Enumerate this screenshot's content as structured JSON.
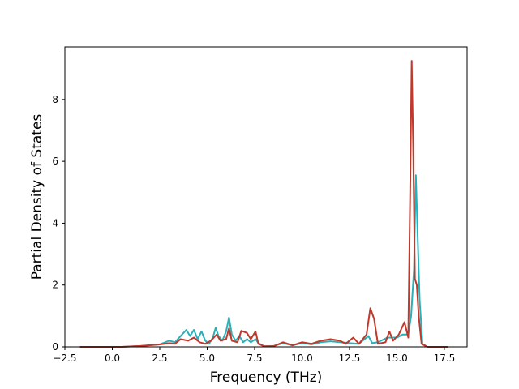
{
  "chart_data": {
    "type": "line",
    "title": "",
    "xlabel": "Frequency (THz)",
    "ylabel": "Partial Density of States",
    "xlim": [
      -2.5,
      18.7
    ],
    "ylim": [
      0,
      9.7
    ],
    "grid": false,
    "legend": "none",
    "x_ticks": [
      -2.5,
      0.0,
      2.5,
      5.0,
      7.5,
      10.0,
      12.5,
      15.0,
      17.5
    ],
    "x_tick_labels": [
      "−2.5",
      "0.0",
      "2.5",
      "5.0",
      "7.5",
      "10.0",
      "12.5",
      "15.0",
      "17.5"
    ],
    "y_ticks": [
      0,
      2,
      4,
      6,
      8
    ],
    "y_tick_labels": [
      "0",
      "2",
      "4",
      "6",
      "8"
    ],
    "series": [
      {
        "color": "#2ab0b8",
        "points": [
          [
            -1.7,
            0
          ],
          [
            0.5,
            0
          ],
          [
            1.5,
            0.03
          ],
          [
            2.5,
            0.08
          ],
          [
            3.0,
            0.2
          ],
          [
            3.3,
            0.15
          ],
          [
            3.6,
            0.35
          ],
          [
            3.9,
            0.55
          ],
          [
            4.1,
            0.35
          ],
          [
            4.3,
            0.55
          ],
          [
            4.5,
            0.25
          ],
          [
            4.7,
            0.5
          ],
          [
            4.9,
            0.2
          ],
          [
            5.1,
            0.1
          ],
          [
            5.3,
            0.3
          ],
          [
            5.45,
            0.62
          ],
          [
            5.6,
            0.35
          ],
          [
            5.8,
            0.2
          ],
          [
            6.0,
            0.5
          ],
          [
            6.15,
            0.95
          ],
          [
            6.3,
            0.4
          ],
          [
            6.5,
            0.2
          ],
          [
            6.7,
            0.35
          ],
          [
            6.9,
            0.15
          ],
          [
            7.1,
            0.25
          ],
          [
            7.3,
            0.15
          ],
          [
            7.55,
            0.25
          ],
          [
            7.7,
            0.12
          ],
          [
            8.0,
            0.02
          ],
          [
            8.5,
            0.03
          ],
          [
            9.0,
            0.12
          ],
          [
            9.5,
            0.05
          ],
          [
            10.0,
            0.12
          ],
          [
            10.5,
            0.08
          ],
          [
            11.0,
            0.15
          ],
          [
            11.5,
            0.18
          ],
          [
            12.0,
            0.15
          ],
          [
            12.5,
            0.12
          ],
          [
            13.0,
            0.1
          ],
          [
            13.5,
            0.35
          ],
          [
            13.7,
            0.12
          ],
          [
            14.0,
            0.15
          ],
          [
            14.5,
            0.3
          ],
          [
            15.0,
            0.3
          ],
          [
            15.3,
            0.4
          ],
          [
            15.6,
            0.4
          ],
          [
            15.75,
            1.0
          ],
          [
            15.9,
            2.5
          ],
          [
            16.0,
            5.55
          ],
          [
            16.1,
            3.5
          ],
          [
            16.2,
            1.5
          ],
          [
            16.35,
            0.1
          ],
          [
            16.6,
            0
          ],
          [
            17.7,
            0
          ]
        ]
      },
      {
        "color": "#c0392b",
        "points": [
          [
            -1.7,
            0
          ],
          [
            0.5,
            0
          ],
          [
            1.5,
            0.03
          ],
          [
            2.5,
            0.08
          ],
          [
            3.0,
            0.12
          ],
          [
            3.3,
            0.1
          ],
          [
            3.6,
            0.25
          ],
          [
            4.0,
            0.2
          ],
          [
            4.3,
            0.3
          ],
          [
            4.6,
            0.15
          ],
          [
            4.9,
            0.1
          ],
          [
            5.2,
            0.2
          ],
          [
            5.5,
            0.4
          ],
          [
            5.7,
            0.2
          ],
          [
            6.0,
            0.25
          ],
          [
            6.15,
            0.6
          ],
          [
            6.3,
            0.2
          ],
          [
            6.6,
            0.15
          ],
          [
            6.8,
            0.52
          ],
          [
            7.1,
            0.45
          ],
          [
            7.3,
            0.25
          ],
          [
            7.55,
            0.5
          ],
          [
            7.7,
            0.1
          ],
          [
            8.0,
            0.02
          ],
          [
            8.5,
            0.02
          ],
          [
            9.0,
            0.15
          ],
          [
            9.5,
            0.05
          ],
          [
            10.0,
            0.15
          ],
          [
            10.5,
            0.1
          ],
          [
            11.0,
            0.2
          ],
          [
            11.5,
            0.25
          ],
          [
            12.0,
            0.2
          ],
          [
            12.3,
            0.1
          ],
          [
            12.7,
            0.3
          ],
          [
            13.0,
            0.1
          ],
          [
            13.4,
            0.4
          ],
          [
            13.6,
            1.25
          ],
          [
            13.8,
            0.9
          ],
          [
            14.0,
            0.1
          ],
          [
            14.4,
            0.15
          ],
          [
            14.6,
            0.5
          ],
          [
            14.8,
            0.2
          ],
          [
            15.1,
            0.4
          ],
          [
            15.4,
            0.8
          ],
          [
            15.6,
            0.3
          ],
          [
            15.7,
            5.0
          ],
          [
            15.78,
            9.25
          ],
          [
            15.86,
            6.5
          ],
          [
            15.95,
            2.2
          ],
          [
            16.05,
            2.0
          ],
          [
            16.15,
            1.0
          ],
          [
            16.3,
            0.1
          ],
          [
            16.6,
            0
          ],
          [
            17.7,
            0
          ]
        ]
      }
    ]
  }
}
